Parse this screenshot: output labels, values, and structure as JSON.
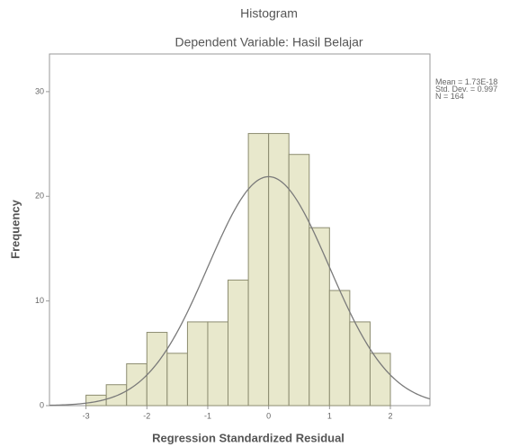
{
  "chart_data": {
    "type": "histogram",
    "title": "Histogram",
    "subtitle": "Dependent Variable: Hasil Belajar",
    "xlabel": "Regression Standardized Residual",
    "ylabel": "Frequency",
    "bins": [
      -3,
      -2.667,
      -2.333,
      -2,
      -1.667,
      -1.333,
      -1,
      -0.667,
      -0.333,
      0,
      0.333,
      0.667,
      1,
      1.333,
      1.667,
      2
    ],
    "values": [
      1,
      2,
      4,
      7,
      5,
      8,
      8,
      12,
      26,
      26,
      24,
      17,
      11,
      8,
      5
    ],
    "color": "#e8e8cc",
    "edge_color": "#8c8c70",
    "curve_color": "#7a7a7a",
    "xlim": [
      -3.6,
      2.65
    ],
    "xticks": [
      -3,
      -2,
      -1,
      0,
      1,
      2
    ],
    "ylim": [
      0,
      33.6
    ],
    "yticks": [
      0,
      10,
      20,
      30
    ],
    "stats": {
      "values": [
        1.73e-18,
        0.997,
        164
      ],
      "value_labels": [
        "Mean = 1.73E-18",
        "Std. Dev. = 0.997",
        "N = 164"
      ]
    }
  }
}
